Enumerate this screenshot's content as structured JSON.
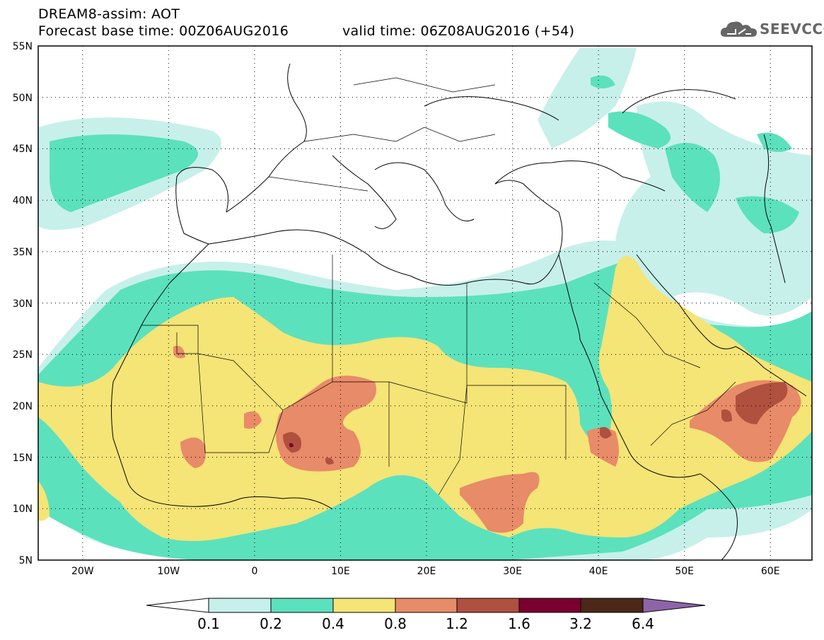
{
  "header": {
    "title_line1": "DREAM8-assim: AOT",
    "title_line2": "Forecast base time: 00Z06AUG2016",
    "valid_time": "valid time: 06Z08AUG2016 (+54)",
    "logo_text": "SEEVCCC"
  },
  "map": {
    "variable": "AOT",
    "lon_range": [
      -25,
      65
    ],
    "lat_range": [
      5,
      55
    ],
    "lat_ticks": [
      "55N",
      "50N",
      "45N",
      "40N",
      "35N",
      "30N",
      "25N",
      "20N",
      "15N",
      "10N",
      "5N"
    ],
    "lon_ticks": [
      "20W",
      "10W",
      "0",
      "10E",
      "20E",
      "30E",
      "40E",
      "50E",
      "60E"
    ]
  },
  "colorbar": {
    "labels": [
      "0.1",
      "0.2",
      "0.4",
      "0.8",
      "1.2",
      "1.6",
      "3.2",
      "6.4"
    ],
    "colors": [
      "#ffffff",
      "#c7f0ea",
      "#5ce1bd",
      "#f5e476",
      "#e88b68",
      "#b0503f",
      "#7a0030",
      "#4b2818",
      "#8e64a8"
    ]
  },
  "colors": {
    "c1": "#c7f0ea",
    "c2": "#5ce1bd",
    "c3": "#f5e476",
    "c4": "#e88b68",
    "c5": "#b0503f",
    "c6": "#7a0030"
  }
}
